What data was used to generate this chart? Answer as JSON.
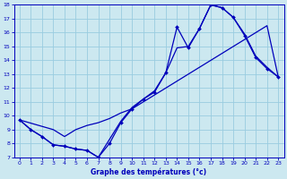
{
  "xlabel": "Graphe des températures (°c)",
  "xlim": [
    -0.5,
    23.5
  ],
  "ylim": [
    7,
    18
  ],
  "yticks": [
    7,
    8,
    9,
    10,
    11,
    12,
    13,
    14,
    15,
    16,
    17,
    18
  ],
  "xticks": [
    0,
    1,
    2,
    3,
    4,
    5,
    6,
    7,
    8,
    9,
    10,
    11,
    12,
    13,
    14,
    15,
    16,
    17,
    18,
    19,
    20,
    21,
    22,
    23
  ],
  "bg_color": "#cce8f0",
  "line_color": "#0000bb",
  "grid_color": "#99cce0",
  "line1_x": [
    0,
    1,
    2,
    3,
    4,
    5,
    6,
    7,
    8,
    9,
    10,
    11,
    12,
    13,
    14,
    15,
    16,
    17,
    18,
    19,
    20,
    21,
    22,
    23
  ],
  "line1_y": [
    9.7,
    9.0,
    8.5,
    7.9,
    7.8,
    7.6,
    7.5,
    7.0,
    8.0,
    9.5,
    10.5,
    11.2,
    11.7,
    13.1,
    16.4,
    14.9,
    16.3,
    18.0,
    17.8,
    17.1,
    15.8,
    14.2,
    13.4,
    12.8
  ],
  "line2_x": [
    0,
    3,
    4,
    5,
    6,
    7,
    8,
    9,
    10,
    11,
    12,
    13,
    14,
    15,
    16,
    17,
    18,
    19,
    20,
    21,
    22,
    23
  ],
  "line2_y": [
    9.7,
    9.0,
    8.5,
    9.0,
    9.3,
    9.5,
    9.8,
    10.2,
    10.5,
    11.0,
    11.5,
    12.0,
    12.5,
    13.0,
    13.5,
    14.0,
    14.5,
    15.0,
    15.5,
    16.0,
    16.5,
    12.8
  ],
  "line3_x": [
    0,
    1,
    2,
    3,
    4,
    5,
    6,
    7,
    8,
    9,
    10,
    11,
    12,
    13,
    14,
    15,
    16,
    17,
    18,
    19,
    20,
    21,
    22,
    23
  ],
  "line3_y": [
    9.7,
    9.0,
    8.5,
    7.9,
    7.8,
    7.6,
    7.5,
    7.0,
    8.3,
    9.6,
    10.6,
    11.2,
    11.8,
    13.1,
    14.9,
    15.0,
    16.3,
    18.0,
    17.8,
    17.1,
    15.9,
    14.3,
    13.5,
    12.8
  ]
}
